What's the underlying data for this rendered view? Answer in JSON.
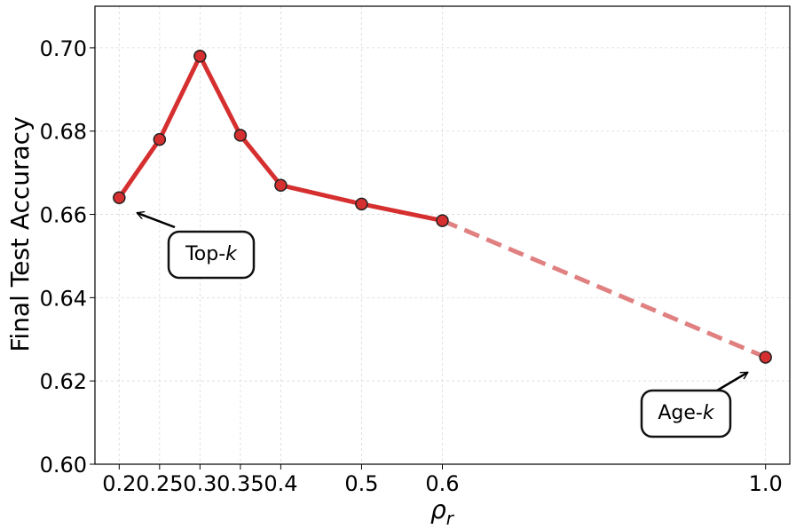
{
  "chart_data": {
    "type": "line",
    "xlabel": "ρr",
    "ylabel": "Final Test Accuracy",
    "x_ticks": [
      "0.2",
      "0.25",
      "0.3",
      "0.35",
      "0.4",
      "0.5",
      "0.6",
      "1.0"
    ],
    "y_ticks": [
      "0.60",
      "0.62",
      "0.64",
      "0.66",
      "0.68",
      "0.70"
    ],
    "xlim": [
      0.17,
      1.03
    ],
    "ylim": [
      0.6,
      0.71
    ],
    "grid": true,
    "series": [
      {
        "style": "solid",
        "color": "#d62f2f",
        "points": [
          {
            "x": 0.2,
            "y": 0.664
          },
          {
            "x": 0.25,
            "y": 0.678
          },
          {
            "x": 0.3,
            "y": 0.698
          },
          {
            "x": 0.35,
            "y": 0.679
          },
          {
            "x": 0.4,
            "y": 0.667
          },
          {
            "x": 0.5,
            "y": 0.6625
          },
          {
            "x": 0.6,
            "y": 0.6585
          }
        ]
      },
      {
        "style": "dashed",
        "color": "#e08080",
        "points": [
          {
            "x": 0.6,
            "y": 0.6585
          },
          {
            "x": 1.0,
            "y": 0.6257
          }
        ]
      }
    ],
    "annotations": [
      {
        "prefix": "Top-",
        "italic": "k",
        "target": {
          "x": 0.2,
          "y": 0.664
        }
      },
      {
        "prefix": "Age-",
        "italic": "k",
        "target": {
          "x": 1.0,
          "y": 0.6257
        }
      }
    ]
  }
}
